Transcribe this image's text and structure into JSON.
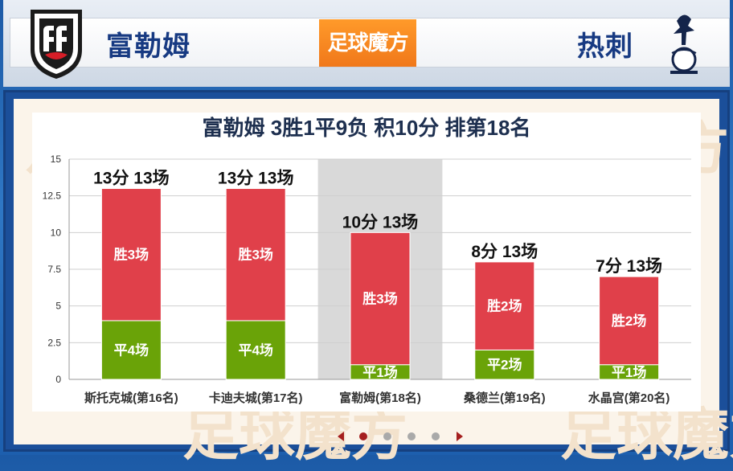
{
  "header": {
    "home_team": "富勒姆",
    "away_team": "热刺",
    "brand": "足球魔方"
  },
  "chart_data": {
    "type": "bar",
    "stacked": true,
    "title": "富勒姆 3胜1平9负 积10分 排第18名",
    "ylim": [
      0,
      15
    ],
    "yticks": [
      "0",
      "2.5",
      "5",
      "7.5",
      "10",
      "12.5",
      "15"
    ],
    "ytick_values": [
      0,
      2.5,
      5,
      7.5,
      10,
      12.5,
      15
    ],
    "categories": [
      "斯托克城(第16名)",
      "卡迪夫城(第17名)",
      "富勒姆(第18名)",
      "桑德兰(第19名)",
      "水晶宫(第20名)"
    ],
    "highlight_index": 2,
    "series": [
      {
        "values": [
          4,
          4,
          1,
          2,
          1
        ],
        "color": "#6aa308",
        "labels": [
          "平4场",
          "平4场",
          "平1场",
          "平2场",
          "平1场"
        ]
      },
      {
        "values": [
          9,
          9,
          9,
          6,
          6
        ],
        "color": "#e0404a",
        "labels": [
          "胜3场",
          "胜3场",
          "胜3场",
          "胜2场",
          "胜2场"
        ]
      }
    ],
    "top_labels": [
      "13分 13场",
      "13分 13场",
      "10分 13场",
      "8分 13场",
      "7分 13场"
    ],
    "grid": true
  },
  "pager": {
    "count": 4,
    "active": 0
  }
}
